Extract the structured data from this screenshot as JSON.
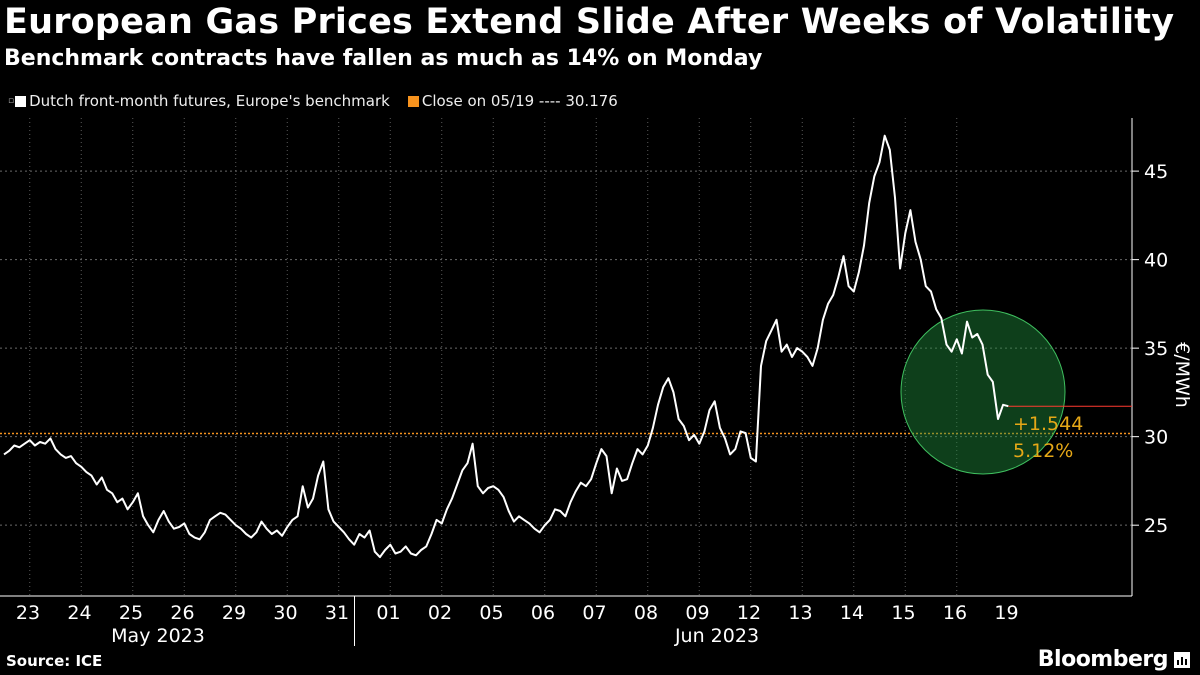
{
  "header": {
    "title": "European Gas Prices Extend Slide After Weeks of Volatility",
    "subtitle": "Benchmark contracts have fallen as much as 14% on Monday"
  },
  "legend": {
    "series_label": "Dutch front-month futures, Europe's benchmark",
    "series_color": "#ffffff",
    "close_label": "Close on 05/19 ---- 30.176",
    "close_color": "#f7931e"
  },
  "footer": {
    "source": "Source: ICE",
    "brand": "Bloomberg"
  },
  "colors": {
    "line": "#ffffff",
    "ref": "#f7931e",
    "circle": "#1e8c3c",
    "pos": "#e6a817",
    "current": "#ff3b30"
  },
  "chart_data": {
    "type": "line",
    "title": "European Gas Prices Extend Slide After Weeks of Volatility",
    "subtitle": "Benchmark contracts have fallen as much as 14% on Monday",
    "ylabel": "€/MWh",
    "ylim": [
      21,
      48
    ],
    "yticks": [
      25,
      30,
      35,
      40,
      45
    ],
    "grid": true,
    "x_day_labels": [
      "23",
      "24",
      "25",
      "26",
      "29",
      "30",
      "31",
      "01",
      "02",
      "05",
      "06",
      "07",
      "08",
      "09",
      "12",
      "13",
      "14",
      "15",
      "16",
      "19"
    ],
    "x_month_labels": [
      "May 2023",
      "Jun 2023"
    ],
    "reference": {
      "label": "Close on 05/19",
      "value": 30.176
    },
    "annotation": {
      "change": "+1.544",
      "pct": "5.12%"
    },
    "last_value": 31.72,
    "series": [
      {
        "name": "Dutch front-month futures, Europe's benchmark",
        "x": [
          0,
          0.1,
          0.2,
          0.3,
          0.4,
          0.5,
          0.6,
          0.7,
          0.8,
          0.9,
          1,
          1.1,
          1.2,
          1.3,
          1.4,
          1.5,
          1.6,
          1.7,
          1.8,
          1.9,
          2,
          2.1,
          2.2,
          2.3,
          2.4,
          2.5,
          2.6,
          2.7,
          2.8,
          2.9,
          3,
          3.1,
          3.2,
          3.3,
          3.4,
          3.5,
          3.6,
          3.7,
          3.8,
          3.9,
          4,
          4.1,
          4.2,
          4.3,
          4.4,
          4.5,
          4.6,
          4.7,
          4.8,
          4.9,
          5,
          5.1,
          5.2,
          5.3,
          5.4,
          5.5,
          5.6,
          5.7,
          5.8,
          5.9,
          6,
          6.1,
          6.2,
          6.3,
          6.4,
          6.5,
          6.6,
          6.7,
          6.8,
          6.9,
          7,
          7.1,
          7.2,
          7.3,
          7.4,
          7.5,
          7.6,
          7.7,
          7.8,
          7.9,
          8,
          8.1,
          8.2,
          8.3,
          8.4,
          8.5,
          8.6,
          8.7,
          8.8,
          8.9,
          9,
          9.1,
          9.2,
          9.3,
          9.4,
          9.5,
          9.6,
          9.7,
          9.8,
          9.9,
          10,
          10.1,
          10.2,
          10.3,
          10.4,
          10.5,
          10.6,
          10.7,
          10.8,
          10.9,
          11,
          11.1,
          11.2,
          11.3,
          11.4,
          11.5,
          11.6,
          11.7,
          11.8,
          11.9,
          12,
          12.1,
          12.2,
          12.3,
          12.4,
          12.5,
          12.6,
          12.7,
          12.8,
          12.9,
          13,
          13.1,
          13.2,
          13.3,
          13.4,
          13.5,
          13.6,
          13.7,
          13.8,
          13.9,
          14,
          14.1,
          14.2,
          14.3,
          14.4,
          14.5,
          14.6,
          14.7,
          14.8,
          14.9,
          15,
          15.1,
          15.2,
          15.3,
          15.4,
          15.5,
          15.6,
          15.7,
          15.8,
          15.9,
          16,
          16.1,
          16.2,
          16.3,
          16.4,
          16.5,
          16.6,
          16.7,
          16.8,
          16.9,
          17,
          17.1,
          17.2,
          17.3,
          17.4,
          17.5,
          17.6,
          17.7,
          17.8,
          17.9,
          18,
          18.1,
          18.2,
          18.3,
          18.4,
          18.5,
          18.6,
          18.7,
          18.8,
          18.9,
          19,
          19.1,
          19.2,
          19.3,
          19.4,
          19.5
        ],
        "values": [
          29,
          29.2,
          29.5,
          29.4,
          29.6,
          29.8,
          29.5,
          29.7,
          29.6,
          29.9,
          29.3,
          29.0,
          28.8,
          28.9,
          28.5,
          28.3,
          28.0,
          27.8,
          27.3,
          27.7,
          27.0,
          26.8,
          26.3,
          26.5,
          25.9,
          26.3,
          26.8,
          25.5,
          25.0,
          24.6,
          25.3,
          25.8,
          25.2,
          24.8,
          24.9,
          25.1,
          24.5,
          24.3,
          24.2,
          24.6,
          25.3,
          25.5,
          25.7,
          25.6,
          25.3,
          25.0,
          24.8,
          24.5,
          24.3,
          24.6,
          25.2,
          24.8,
          24.5,
          24.7,
          24.4,
          24.9,
          25.3,
          25.5,
          27.2,
          26.0,
          26.5,
          27.8,
          28.6,
          25.9,
          25.2,
          24.9,
          24.6,
          24.2,
          23.9,
          24.5,
          24.3,
          24.7,
          23.5,
          23.2,
          23.6,
          23.9,
          23.4,
          23.5,
          23.8,
          23.4,
          23.3,
          23.6,
          23.8,
          24.5,
          25.3,
          25.1,
          25.9,
          26.5,
          27.3,
          28.1,
          28.5,
          29.6,
          27.2,
          26.8,
          27.1,
          27.2,
          27.0,
          26.6,
          25.8,
          25.2,
          25.5,
          25.3,
          25.1,
          24.8,
          24.6,
          25.0,
          25.3,
          25.9,
          25.8,
          25.5,
          26.3,
          26.9,
          27.4,
          27.2,
          27.6,
          28.5,
          29.3,
          28.9,
          26.8,
          28.2,
          27.5,
          27.6,
          28.5,
          29.3,
          29.0,
          29.5,
          30.5,
          31.8,
          32.8,
          33.3,
          32.5,
          31.0,
          30.6,
          29.8,
          30.1,
          29.6,
          30.3,
          31.5,
          32.0,
          30.5,
          29.9,
          29.0,
          29.3,
          30.3,
          30.2,
          28.8,
          28.6,
          34.0,
          35.4,
          36.0,
          36.6,
          34.8,
          35.2,
          34.5,
          35.0,
          34.8,
          34.5,
          34.0,
          35.0,
          36.6,
          37.5,
          38.0,
          39.0,
          40.2,
          38.5,
          38.2,
          39.3,
          40.8,
          43.2,
          44.7,
          45.5,
          47.0,
          46.2,
          43.5,
          39.5,
          41.5,
          42.8,
          41.0,
          40.0,
          38.5,
          38.2,
          37.2,
          36.7,
          35.2,
          34.8,
          35.5,
          34.7,
          36.5,
          35.6,
          35.8,
          35.2,
          33.5,
          33.1,
          31.0,
          31.8,
          31.72
        ]
      }
    ]
  }
}
